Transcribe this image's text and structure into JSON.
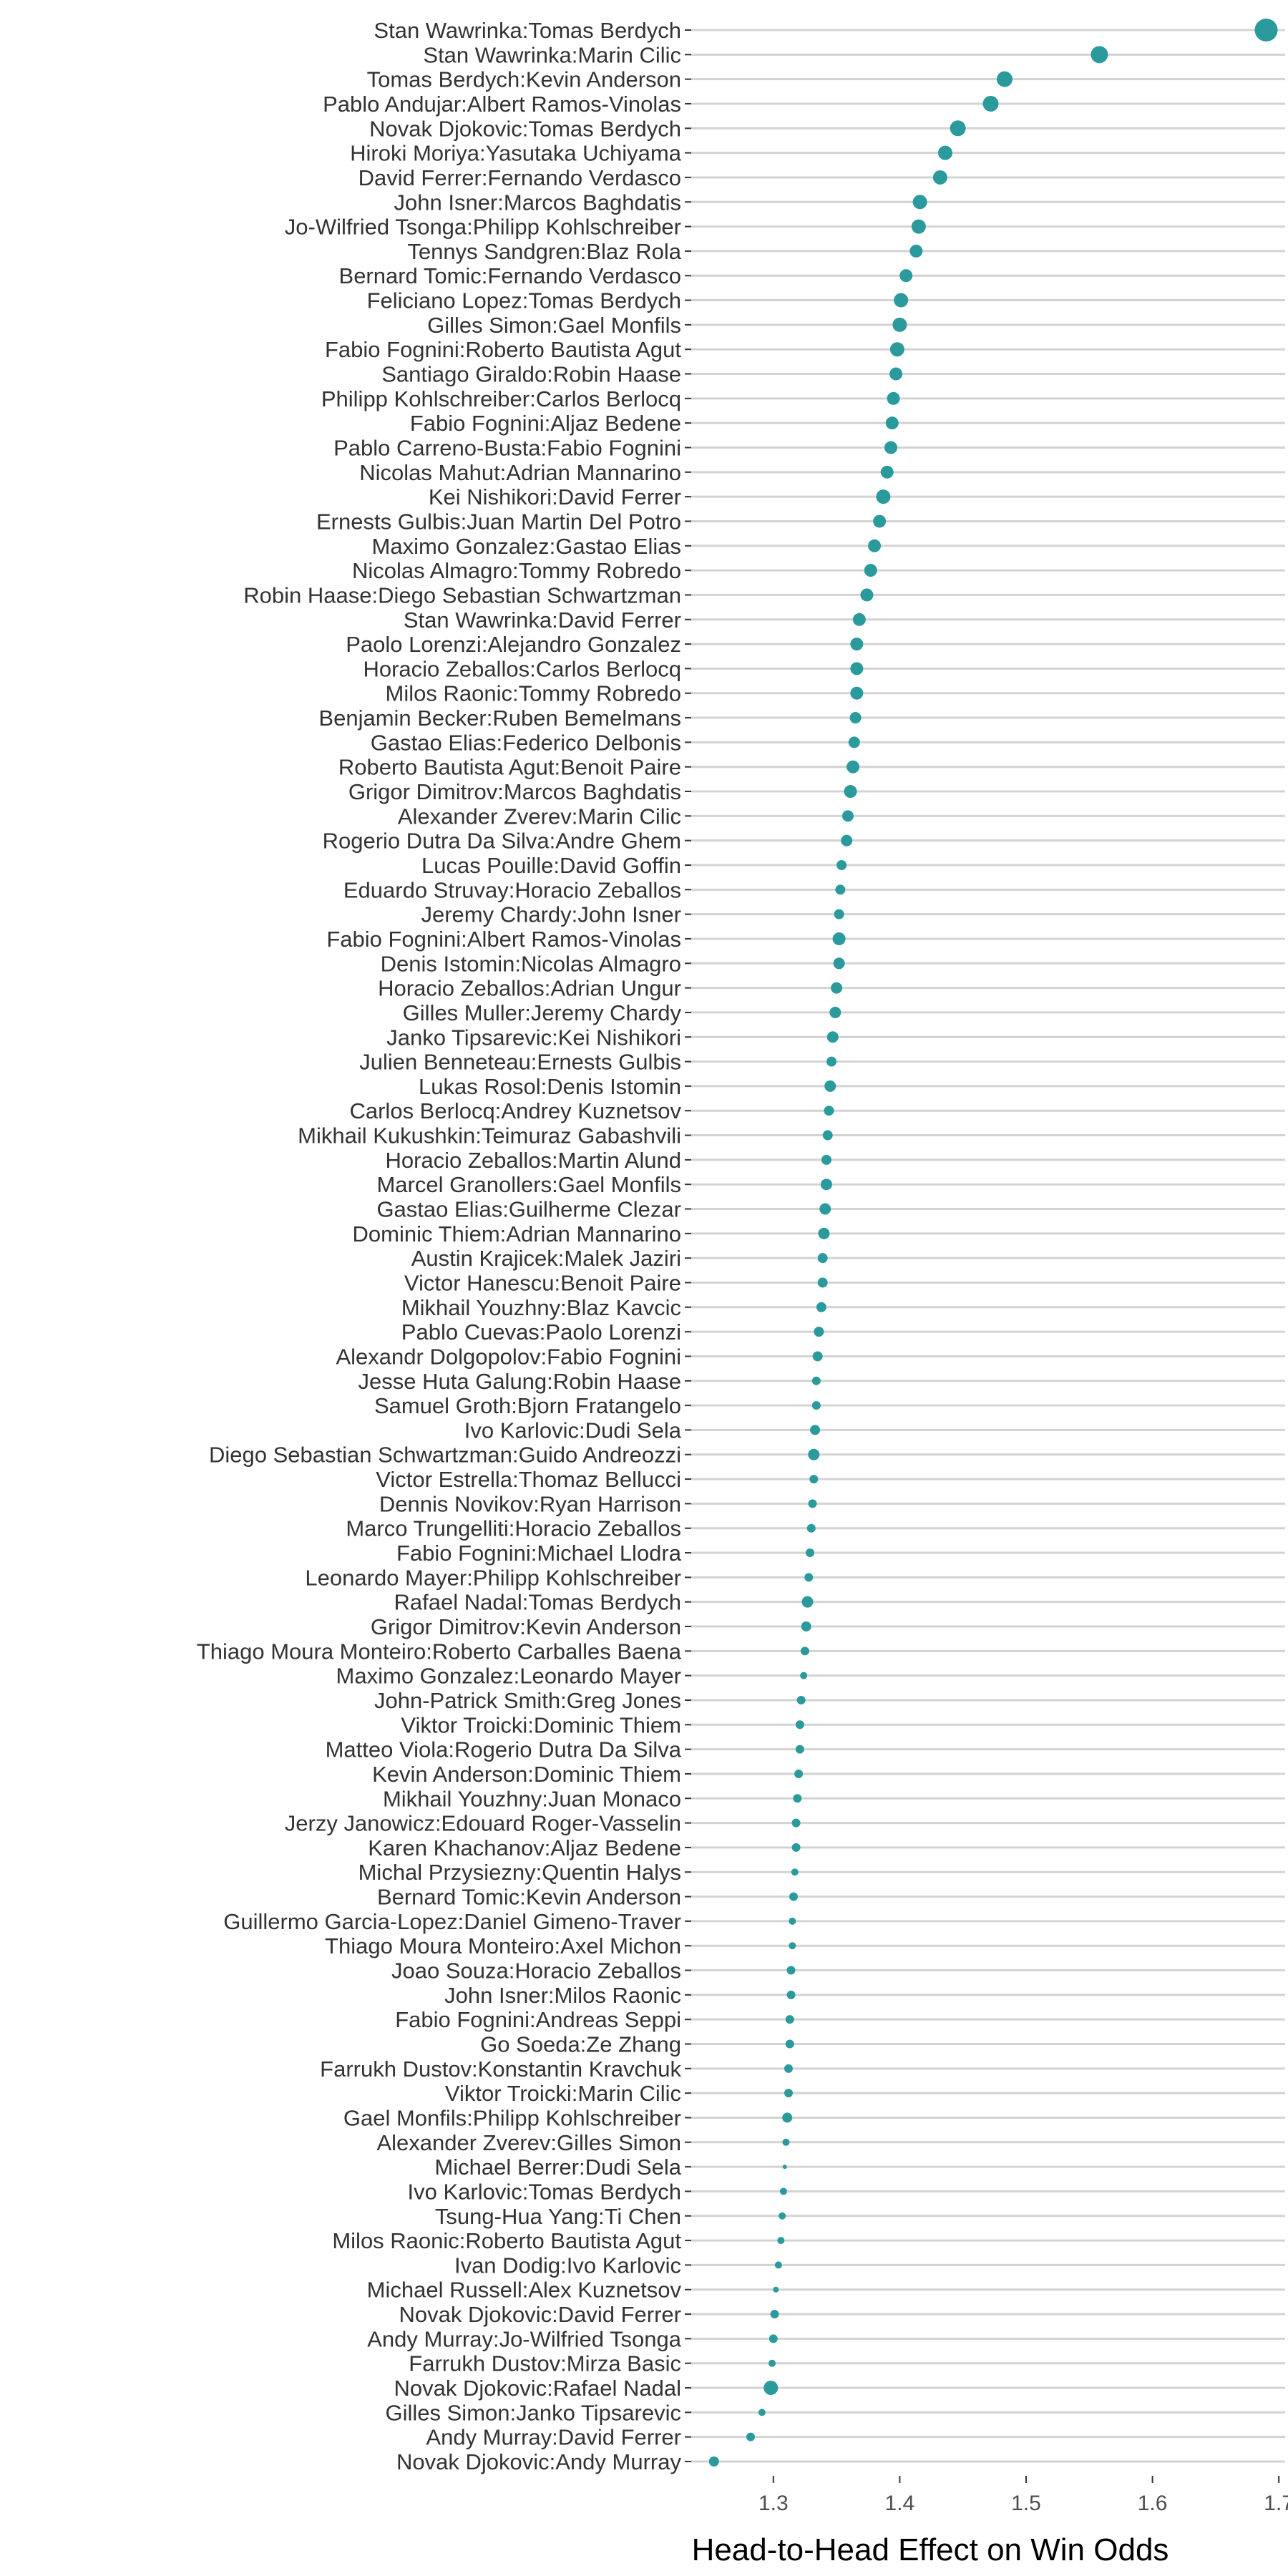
{
  "chart_data": {
    "type": "scatter",
    "orientation": "horizontal",
    "xlabel": "Head-to-Head Effect on Win Odds",
    "ylabel": "",
    "xlim": [
      1.235,
      1.705
    ],
    "xticks": [
      1.3,
      1.4,
      1.5,
      1.6,
      1.7
    ],
    "xtick_labels": [
      "1.3",
      "1.4",
      "1.5",
      "1.6",
      "1.7"
    ],
    "grid": "horizontal",
    "point_color": "#2a9a9c",
    "point_size_note": "dot size varies by matchup",
    "points": [
      {
        "label": "Stan Wawrinka:Tomas Berdych",
        "value": 1.69,
        "size": 16
      },
      {
        "label": "Stan Wawrinka:Marin Cilic",
        "value": 1.558,
        "size": 12
      },
      {
        "label": "Tomas Berdych:Kevin Anderson",
        "value": 1.483,
        "size": 11
      },
      {
        "label": "Pablo Andujar:Albert Ramos-Vinolas",
        "value": 1.472,
        "size": 11
      },
      {
        "label": "Novak Djokovic:Tomas Berdych",
        "value": 1.446,
        "size": 11
      },
      {
        "label": "Hiroki Moriya:Yasutaka Uchiyama",
        "value": 1.436,
        "size": 10
      },
      {
        "label": "David Ferrer:Fernando Verdasco",
        "value": 1.432,
        "size": 10
      },
      {
        "label": "John Isner:Marcos Baghdatis",
        "value": 1.416,
        "size": 10
      },
      {
        "label": "Jo-Wilfried Tsonga:Philipp Kohlschreiber",
        "value": 1.415,
        "size": 10
      },
      {
        "label": "Tennys Sandgren:Blaz Rola",
        "value": 1.413,
        "size": 9
      },
      {
        "label": "Bernard Tomic:Fernando Verdasco",
        "value": 1.405,
        "size": 9
      },
      {
        "label": "Feliciano Lopez:Tomas Berdych",
        "value": 1.401,
        "size": 10
      },
      {
        "label": "Gilles Simon:Gael Monfils",
        "value": 1.4,
        "size": 10
      },
      {
        "label": "Fabio Fognini:Roberto Bautista Agut",
        "value": 1.398,
        "size": 10
      },
      {
        "label": "Santiago Giraldo:Robin Haase",
        "value": 1.397,
        "size": 9
      },
      {
        "label": "Philipp Kohlschreiber:Carlos Berlocq",
        "value": 1.395,
        "size": 9
      },
      {
        "label": "Fabio Fognini:Aljaz Bedene",
        "value": 1.394,
        "size": 9
      },
      {
        "label": "Pablo Carreno-Busta:Fabio Fognini",
        "value": 1.393,
        "size": 9
      },
      {
        "label": "Nicolas Mahut:Adrian Mannarino",
        "value": 1.39,
        "size": 9
      },
      {
        "label": "Kei Nishikori:David Ferrer",
        "value": 1.387,
        "size": 10
      },
      {
        "label": "Ernests Gulbis:Juan Martin Del Potro",
        "value": 1.384,
        "size": 9
      },
      {
        "label": "Maximo Gonzalez:Gastao Elias",
        "value": 1.38,
        "size": 9
      },
      {
        "label": "Nicolas Almagro:Tommy Robredo",
        "value": 1.377,
        "size": 9
      },
      {
        "label": "Robin Haase:Diego Sebastian Schwartzman",
        "value": 1.374,
        "size": 9
      },
      {
        "label": "Stan Wawrinka:David Ferrer",
        "value": 1.368,
        "size": 9
      },
      {
        "label": "Paolo Lorenzi:Alejandro Gonzalez",
        "value": 1.366,
        "size": 9
      },
      {
        "label": "Horacio Zeballos:Carlos Berlocq",
        "value": 1.366,
        "size": 9
      },
      {
        "label": "Milos Raonic:Tommy Robredo",
        "value": 1.366,
        "size": 9
      },
      {
        "label": "Benjamin Becker:Ruben Bemelmans",
        "value": 1.365,
        "size": 8
      },
      {
        "label": "Gastao Elias:Federico Delbonis",
        "value": 1.364,
        "size": 8
      },
      {
        "label": "Roberto Bautista Agut:Benoit Paire",
        "value": 1.363,
        "size": 9
      },
      {
        "label": "Grigor Dimitrov:Marcos Baghdatis",
        "value": 1.361,
        "size": 9
      },
      {
        "label": "Alexander Zverev:Marin Cilic",
        "value": 1.359,
        "size": 8
      },
      {
        "label": "Rogerio Dutra Da Silva:Andre Ghem",
        "value": 1.358,
        "size": 8
      },
      {
        "label": "Lucas Pouille:David Goffin",
        "value": 1.354,
        "size": 7
      },
      {
        "label": "Eduardo Struvay:Horacio Zeballos",
        "value": 1.353,
        "size": 7
      },
      {
        "label": "Jeremy Chardy:John Isner",
        "value": 1.352,
        "size": 7
      },
      {
        "label": "Fabio Fognini:Albert Ramos-Vinolas",
        "value": 1.352,
        "size": 9
      },
      {
        "label": "Denis Istomin:Nicolas Almagro",
        "value": 1.352,
        "size": 8
      },
      {
        "label": "Horacio Zeballos:Adrian Ungur",
        "value": 1.35,
        "size": 8
      },
      {
        "label": "Gilles Muller:Jeremy Chardy",
        "value": 1.349,
        "size": 8
      },
      {
        "label": "Janko Tipsarevic:Kei Nishikori",
        "value": 1.347,
        "size": 8
      },
      {
        "label": "Julien Benneteau:Ernests Gulbis",
        "value": 1.346,
        "size": 7
      },
      {
        "label": "Lukas Rosol:Denis Istomin",
        "value": 1.345,
        "size": 8
      },
      {
        "label": "Carlos Berlocq:Andrey Kuznetsov",
        "value": 1.344,
        "size": 7
      },
      {
        "label": "Mikhail Kukushkin:Teimuraz Gabashvili",
        "value": 1.343,
        "size": 7
      },
      {
        "label": "Horacio Zeballos:Martin Alund",
        "value": 1.342,
        "size": 7
      },
      {
        "label": "Marcel Granollers:Gael Monfils",
        "value": 1.342,
        "size": 8
      },
      {
        "label": "Gastao Elias:Guilherme Clezar",
        "value": 1.341,
        "size": 8
      },
      {
        "label": "Dominic Thiem:Adrian Mannarino",
        "value": 1.34,
        "size": 8
      },
      {
        "label": "Austin Krajicek:Malek Jaziri",
        "value": 1.339,
        "size": 7
      },
      {
        "label": "Victor Hanescu:Benoit Paire",
        "value": 1.339,
        "size": 7
      },
      {
        "label": "Mikhail Youzhny:Blaz Kavcic",
        "value": 1.338,
        "size": 7
      },
      {
        "label": "Pablo Cuevas:Paolo Lorenzi",
        "value": 1.336,
        "size": 7
      },
      {
        "label": "Alexandr Dolgopolov:Fabio Fognini",
        "value": 1.335,
        "size": 7
      },
      {
        "label": "Jesse Huta Galung:Robin Haase",
        "value": 1.334,
        "size": 6
      },
      {
        "label": "Samuel Groth:Bjorn Fratangelo",
        "value": 1.334,
        "size": 6
      },
      {
        "label": "Ivo Karlovic:Dudi Sela",
        "value": 1.333,
        "size": 7
      },
      {
        "label": "Diego Sebastian Schwartzman:Guido Andreozzi",
        "value": 1.332,
        "size": 8
      },
      {
        "label": "Victor Estrella:Thomaz Bellucci",
        "value": 1.332,
        "size": 6
      },
      {
        "label": "Dennis Novikov:Ryan Harrison",
        "value": 1.331,
        "size": 6
      },
      {
        "label": "Marco Trungelliti:Horacio Zeballos",
        "value": 1.33,
        "size": 6
      },
      {
        "label": "Fabio Fognini:Michael Llodra",
        "value": 1.329,
        "size": 6
      },
      {
        "label": "Leonardo Mayer:Philipp Kohlschreiber",
        "value": 1.328,
        "size": 6
      },
      {
        "label": "Rafael Nadal:Tomas Berdych",
        "value": 1.327,
        "size": 8
      },
      {
        "label": "Grigor Dimitrov:Kevin Anderson",
        "value": 1.326,
        "size": 7
      },
      {
        "label": "Thiago Moura Monteiro:Roberto Carballes Baena",
        "value": 1.325,
        "size": 6
      },
      {
        "label": "Maximo Gonzalez:Leonardo Mayer",
        "value": 1.324,
        "size": 5
      },
      {
        "label": "John-Patrick Smith:Greg Jones",
        "value": 1.322,
        "size": 6
      },
      {
        "label": "Viktor Troicki:Dominic Thiem",
        "value": 1.321,
        "size": 6
      },
      {
        "label": "Matteo Viola:Rogerio Dutra Da Silva",
        "value": 1.321,
        "size": 6
      },
      {
        "label": "Kevin Anderson:Dominic Thiem",
        "value": 1.32,
        "size": 6
      },
      {
        "label": "Mikhail Youzhny:Juan Monaco",
        "value": 1.319,
        "size": 6
      },
      {
        "label": "Jerzy Janowicz:Edouard Roger-Vasselin",
        "value": 1.318,
        "size": 6
      },
      {
        "label": "Karen Khachanov:Aljaz Bedene",
        "value": 1.318,
        "size": 6
      },
      {
        "label": "Michal Przysiezny:Quentin Halys",
        "value": 1.317,
        "size": 5
      },
      {
        "label": "Bernard Tomic:Kevin Anderson",
        "value": 1.316,
        "size": 6
      },
      {
        "label": "Guillermo Garcia-Lopez:Daniel Gimeno-Traver",
        "value": 1.315,
        "size": 5
      },
      {
        "label": "Thiago Moura Monteiro:Axel Michon",
        "value": 1.315,
        "size": 5
      },
      {
        "label": "Joao Souza:Horacio Zeballos",
        "value": 1.314,
        "size": 6
      },
      {
        "label": "John Isner:Milos Raonic",
        "value": 1.314,
        "size": 6
      },
      {
        "label": "Fabio Fognini:Andreas Seppi",
        "value": 1.313,
        "size": 6
      },
      {
        "label": "Go Soeda:Ze Zhang",
        "value": 1.313,
        "size": 6
      },
      {
        "label": "Farrukh Dustov:Konstantin Kravchuk",
        "value": 1.312,
        "size": 6
      },
      {
        "label": "Viktor Troicki:Marin Cilic",
        "value": 1.312,
        "size": 6
      },
      {
        "label": "Gael Monfils:Philipp Kohlschreiber",
        "value": 1.311,
        "size": 7
      },
      {
        "label": "Alexander Zverev:Gilles Simon",
        "value": 1.31,
        "size": 5
      },
      {
        "label": "Michael Berrer:Dudi Sela",
        "value": 1.309,
        "size": 3
      },
      {
        "label": "Ivo Karlovic:Tomas Berdych",
        "value": 1.308,
        "size": 5
      },
      {
        "label": "Tsung-Hua Yang:Ti Chen",
        "value": 1.307,
        "size": 5
      },
      {
        "label": "Milos Raonic:Roberto Bautista Agut",
        "value": 1.306,
        "size": 5
      },
      {
        "label": "Ivan Dodig:Ivo Karlovic",
        "value": 1.304,
        "size": 5
      },
      {
        "label": "Michael Russell:Alex Kuznetsov",
        "value": 1.302,
        "size": 4
      },
      {
        "label": "Novak Djokovic:David Ferrer",
        "value": 1.301,
        "size": 6
      },
      {
        "label": "Andy Murray:Jo-Wilfried Tsonga",
        "value": 1.3,
        "size": 6
      },
      {
        "label": "Farrukh Dustov:Mirza Basic",
        "value": 1.299,
        "size": 5
      },
      {
        "label": "Novak Djokovic:Rafael Nadal",
        "value": 1.298,
        "size": 10
      },
      {
        "label": "Gilles Simon:Janko Tipsarevic",
        "value": 1.291,
        "size": 5
      },
      {
        "label": "Andy Murray:David Ferrer",
        "value": 1.282,
        "size": 6
      },
      {
        "label": "Novak Djokovic:Andy Murray",
        "value": 1.253,
        "size": 7
      }
    ]
  }
}
